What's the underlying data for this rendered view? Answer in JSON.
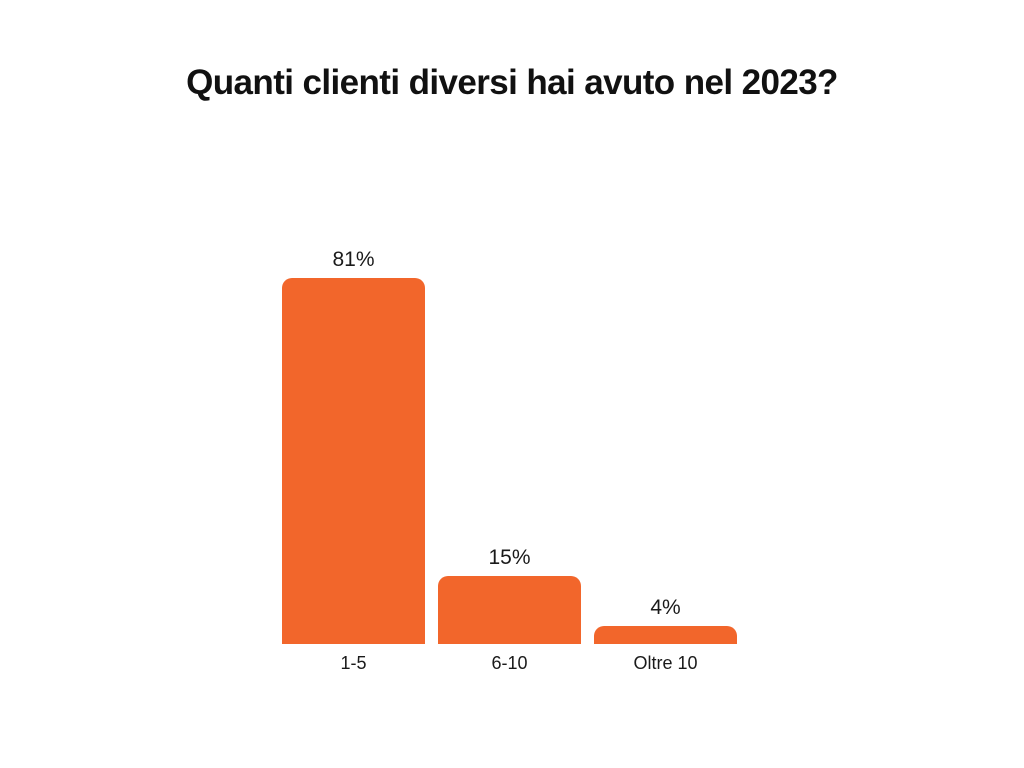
{
  "page": {
    "background_color": "#ffffff",
    "text_color": "#1a1a1a"
  },
  "chart_data": {
    "type": "bar",
    "title": "Quanti clienti diversi hai avuto nel 2023?",
    "categories": [
      "1-5",
      "6-10",
      "Oltre 10"
    ],
    "values": [
      81,
      15,
      4
    ],
    "value_labels": [
      "81%",
      "15%",
      "4%"
    ],
    "xlabel": "",
    "ylabel": "",
    "ylim": [
      0,
      100
    ],
    "grid": false,
    "legend": "none",
    "axes_visible": false,
    "bar_color": "#F2662B",
    "bar_corner_radius_px": 10
  }
}
